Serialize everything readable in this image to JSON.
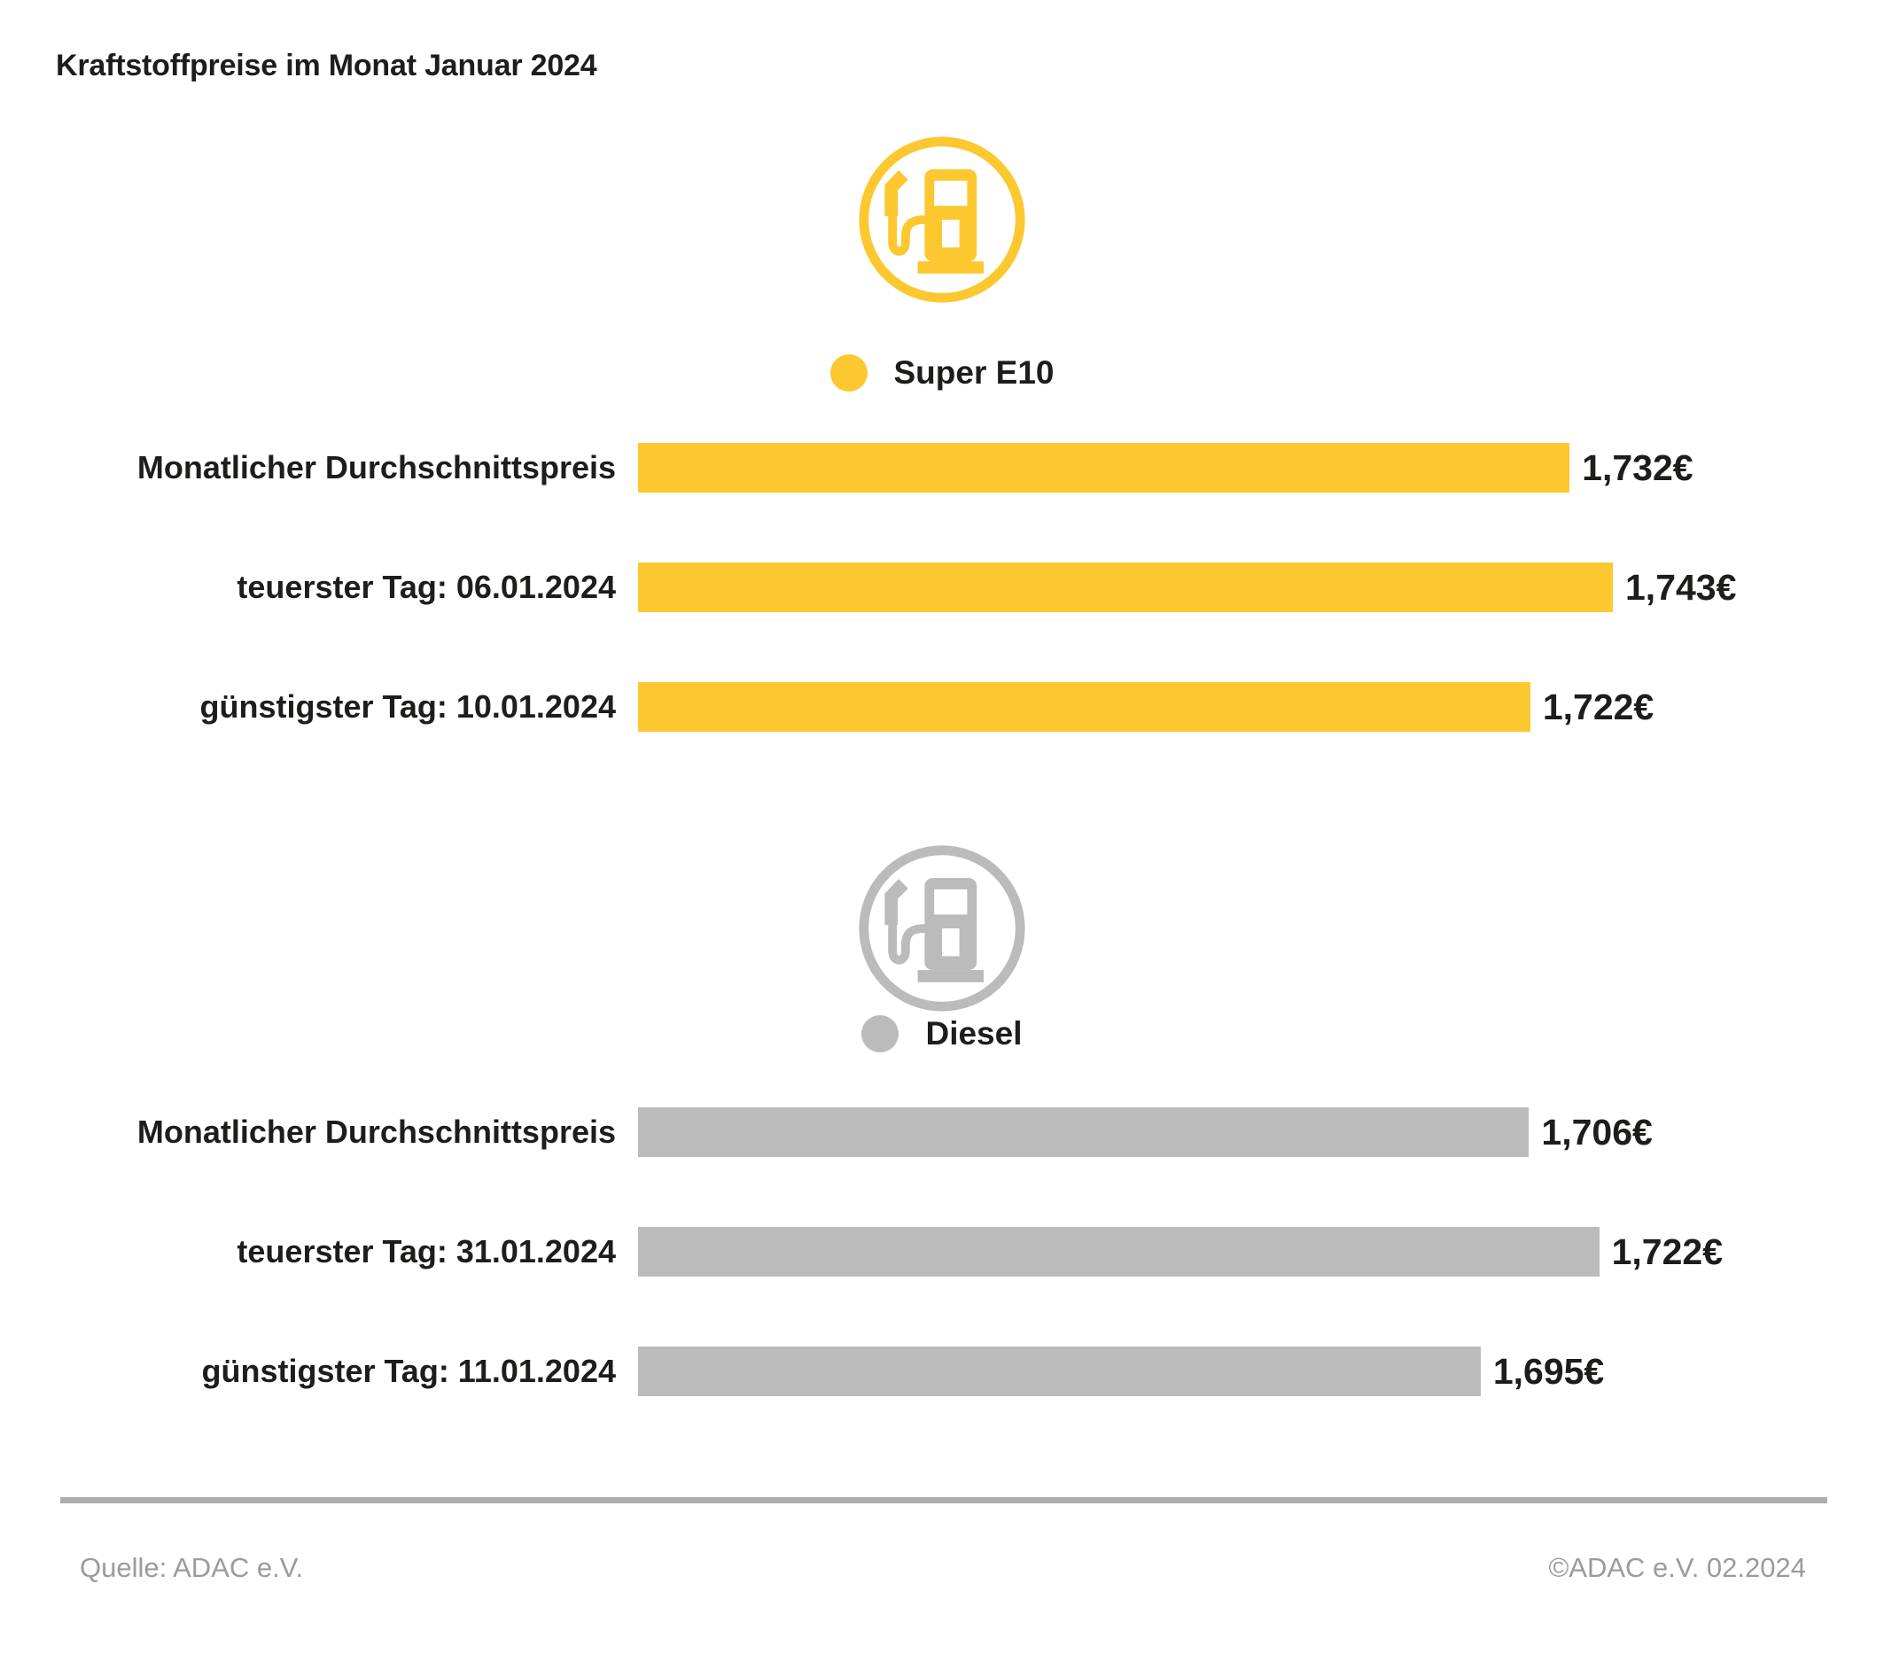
{
  "title": "Kraftstoffpreise im Monat Januar 2024",
  "colors": {
    "super_e10": "#FDC72F",
    "diesel": "#BBBBBB",
    "text_dark": "#1D1D1B",
    "footer_gray": "#9B9B9B",
    "divider_gray": "#ADADAD"
  },
  "chart_data": {
    "type": "bar",
    "orientation": "horizontal",
    "title": "Kraftstoffpreise im Monat Januar 2024",
    "value_unit": "€",
    "legend_position": "above-each-group",
    "grid": false,
    "groups": [
      {
        "name": "Super E10",
        "color": "#FDC72F",
        "icon": "fuel-pump-icon",
        "scale": {
          "xmin": 1.495,
          "xmax": 1.743,
          "max_width_pct": 100
        },
        "rows": [
          {
            "label": "Monatlicher Durchschnittspreis",
            "value": 1.732,
            "display": "1,732€"
          },
          {
            "label": "teuerster Tag: 06.01.2024",
            "value": 1.743,
            "display": "1,743€"
          },
          {
            "label": "günstigster Tag: 10.01.2024",
            "value": 1.722,
            "display": "1,722€"
          }
        ]
      },
      {
        "name": "Diesel",
        "color": "#BBBBBB",
        "icon": "fuel-pump-icon",
        "scale": {
          "xmin": 1.503,
          "xmax": 1.722,
          "max_width_pct": 98.6
        },
        "rows": [
          {
            "label": "Monatlicher Durchschnittspreis",
            "value": 1.706,
            "display": "1,706€"
          },
          {
            "label": "teuerster Tag: 31.01.2024",
            "value": 1.722,
            "display": "1,722€"
          },
          {
            "label": "günstigster Tag: 11.01.2024",
            "value": 1.695,
            "display": "1,695€"
          }
        ]
      }
    ]
  },
  "footer": {
    "source": "Quelle: ADAC e.V.",
    "copyright": "©ADAC e.V. 02.2024"
  }
}
